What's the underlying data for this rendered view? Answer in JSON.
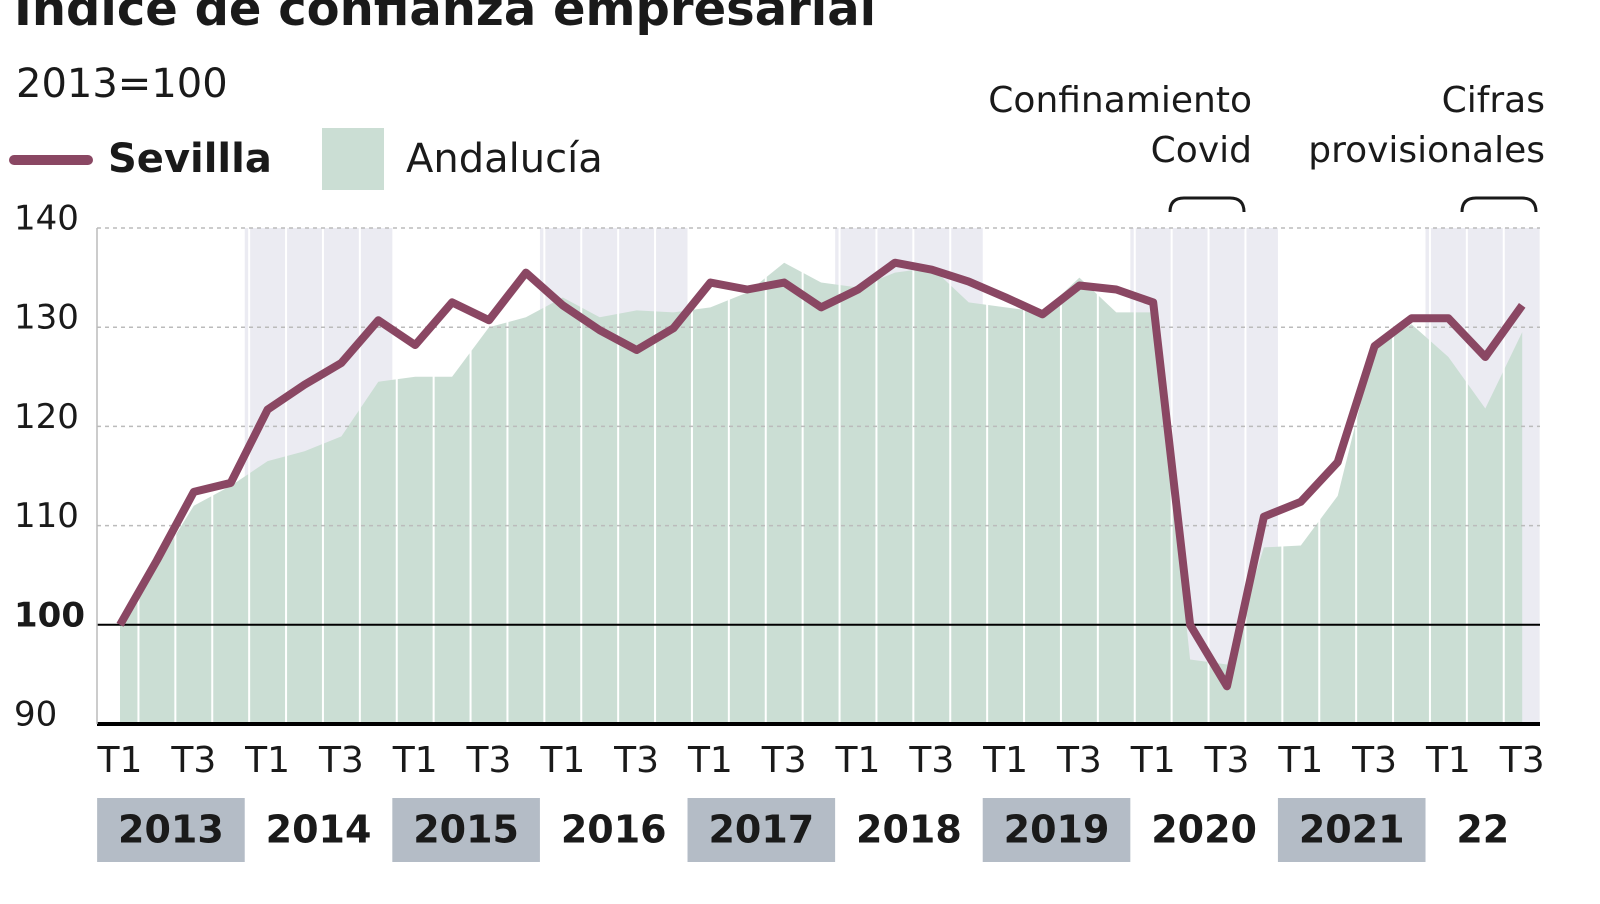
{
  "chart_data": {
    "type": "line",
    "title": "Índice de confianza empresarial",
    "subtitle": "2013=100",
    "annotations": [
      "Confinamiento Covid",
      "Cifras provisionales"
    ],
    "categories": [
      "T1",
      null,
      "T3",
      null,
      "T1",
      null,
      "T3",
      null,
      "T1",
      null,
      "T3",
      null,
      "T1",
      null,
      "T3",
      null,
      "T1",
      null,
      "T3",
      null,
      "T1",
      null,
      "T3",
      null,
      "T1",
      null,
      "T3",
      null,
      "T1",
      null,
      "T3",
      null,
      "T1",
      null,
      "T3",
      null,
      "T1",
      null,
      "T3"
    ],
    "years": [
      "2013",
      "2014",
      "2015",
      "2016",
      "2017",
      "2018",
      "2019",
      "2020",
      "2021",
      "22"
    ],
    "series": [
      {
        "name": "Sevillla",
        "kind": "line",
        "color": "#8a4763",
        "values": [
          100,
          106.5,
          113.4,
          114.3,
          121.7,
          124.2,
          126.4,
          130.7,
          128.2,
          132.5,
          130.7,
          135.5,
          132.2,
          129.7,
          127.7,
          129.9,
          134.5,
          133.8,
          134.5,
          132,
          133.8,
          136.5,
          135.8,
          134.6,
          133,
          131.3,
          134.2,
          133.8,
          132.5,
          100,
          93.8,
          110.9,
          112.4,
          116.4,
          128.1,
          130.9,
          130.9,
          127,
          132.2
        ]
      },
      {
        "name": "Andalucía",
        "kind": "area",
        "color": "#cbded4",
        "values": [
          100,
          106,
          112,
          114,
          116.5,
          117.5,
          119,
          124.5,
          125,
          125,
          130,
          131,
          133,
          131,
          131.7,
          131.5,
          132,
          133.5,
          136.5,
          134.5,
          134,
          135.5,
          136,
          132.5,
          132,
          131.5,
          135,
          131.5,
          131.5,
          96.5,
          96,
          107.8,
          108,
          113,
          128,
          130.3,
          127,
          121.8,
          129.5
        ]
      }
    ],
    "ylim": [
      90,
      140
    ],
    "yticks": [
      90,
      100,
      110,
      120,
      130,
      140
    ],
    "baseline": 100,
    "grid": true
  }
}
